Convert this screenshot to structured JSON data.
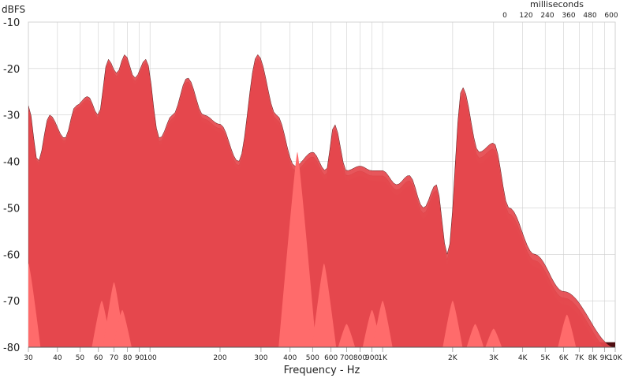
{
  "chart_data": {
    "type": "waterfall",
    "y_unit_label": "dBFS",
    "xlabel": "Frequency - Hz",
    "z_unit_label": "milliseconds",
    "ylim": [
      -80,
      -10
    ],
    "y_ticks": [
      -10,
      -20,
      -30,
      -40,
      -50,
      -60,
      -70,
      -80
    ],
    "y_tick_labels": [
      "-10",
      "-20",
      "-30",
      "-40",
      "-50",
      "-60",
      "-70",
      "-80"
    ],
    "xlim": [
      30,
      10000
    ],
    "x_scale": "log",
    "x_ticks": [
      30,
      40,
      50,
      60,
      70,
      80,
      90,
      100,
      200,
      300,
      400,
      500,
      600,
      700,
      800,
      900,
      1000,
      2000,
      3000,
      4000,
      5000,
      6000,
      7000,
      8000,
      9000,
      10000
    ],
    "x_tick_labels": [
      "30",
      "40",
      "50",
      "60",
      "70",
      "80",
      "90",
      "100",
      "200",
      "300",
      "400",
      "500",
      "600",
      "700",
      "800",
      "900",
      "1K",
      "2K",
      "3K",
      "4K",
      "5K",
      "6K",
      "7K",
      "8K",
      "9K",
      "10K"
    ],
    "z_ticks": [
      0,
      120,
      240,
      360,
      480,
      600
    ],
    "z_tick_labels": [
      "0",
      "120",
      "240",
      "360",
      "480",
      "600"
    ],
    "series": [
      {
        "values": [
          [
            30,
            -28
          ],
          [
            33,
            -40
          ],
          [
            37,
            -30
          ],
          [
            43,
            -35
          ],
          [
            48,
            -28
          ],
          [
            54,
            -26
          ],
          [
            60,
            -30
          ],
          [
            66,
            -18
          ],
          [
            72,
            -21
          ],
          [
            78,
            -17
          ],
          [
            86,
            -22
          ],
          [
            96,
            -18
          ],
          [
            110,
            -35
          ],
          [
            125,
            -30
          ],
          [
            145,
            -22
          ],
          [
            170,
            -30
          ],
          [
            200,
            -32
          ],
          [
            240,
            -40
          ],
          [
            290,
            -17
          ],
          [
            350,
            -30
          ],
          [
            420,
            -41
          ],
          [
            500,
            -38
          ],
          [
            570,
            -42
          ],
          [
            620,
            -32
          ],
          [
            700,
            -42
          ],
          [
            800,
            -41
          ],
          [
            900,
            -42
          ],
          [
            1000,
            -42
          ],
          [
            1150,
            -45
          ],
          [
            1300,
            -43
          ],
          [
            1500,
            -50
          ],
          [
            1700,
            -45
          ],
          [
            1900,
            -60
          ],
          [
            2200,
            -24
          ],
          [
            2600,
            -38
          ],
          [
            3000,
            -36
          ],
          [
            3500,
            -50
          ],
          [
            4500,
            -60
          ],
          [
            6000,
            -68
          ],
          [
            10000,
            -80
          ]
        ]
      }
    ],
    "colors": {
      "fill": "#e5484d",
      "shade": "#8c1f23",
      "front_peaks": "#ff6b6b",
      "grid": "#cfcfcf"
    }
  }
}
